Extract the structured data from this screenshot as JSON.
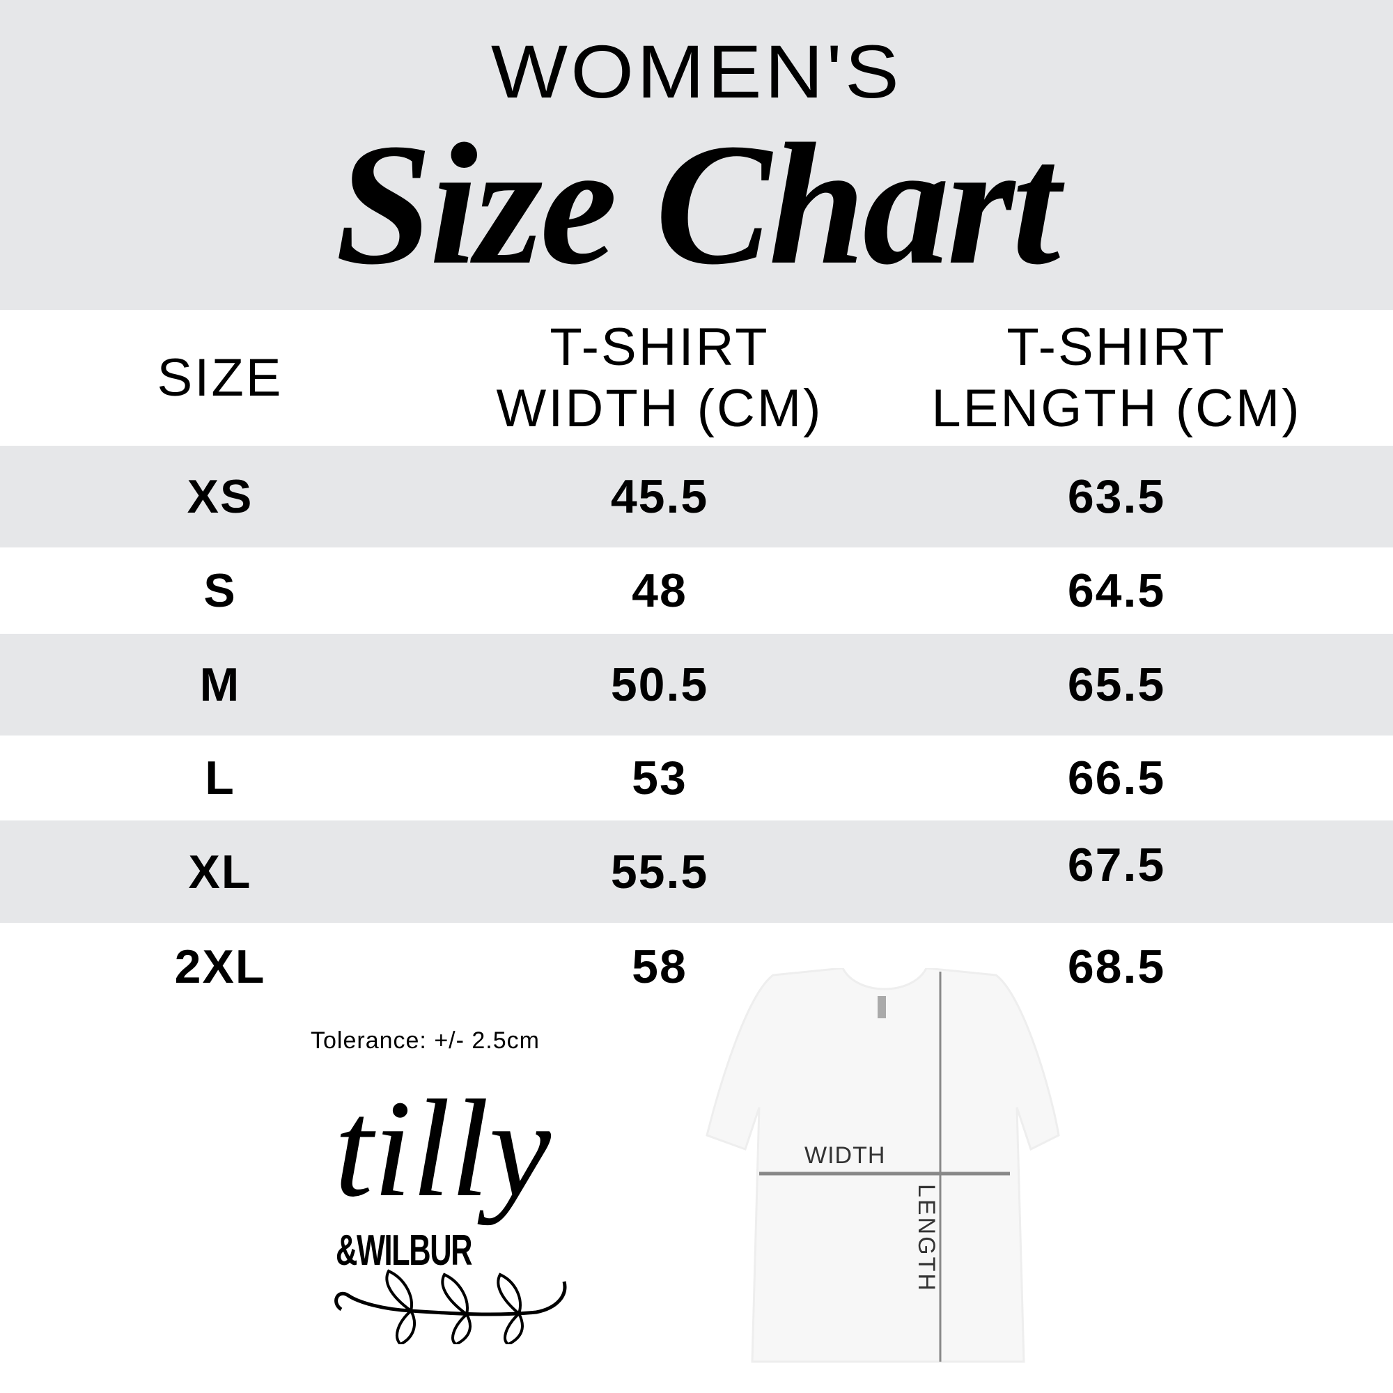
{
  "header": {
    "subtitle": "WOMEN'S",
    "title": "Size Chart"
  },
  "table": {
    "columns": [
      "SIZE",
      "T-SHIRT WIDTH (CM)",
      "T-SHIRT LENGTH (CM)"
    ],
    "col2_line1": "T-SHIRT",
    "col2_line2": "WIDTH (CM)",
    "col3_line1": "T-SHIRT",
    "col3_line2": "LENGTH (CM)",
    "rows": [
      {
        "size": "XS",
        "width": "45.5",
        "length": "63.5"
      },
      {
        "size": "S",
        "width": "48",
        "length": "64.5"
      },
      {
        "size": "M",
        "width": "50.5",
        "length": "65.5"
      },
      {
        "size": "L",
        "width": "53",
        "length": "66.5"
      },
      {
        "size": "XL",
        "width": "55.5",
        "length": "67.5"
      },
      {
        "size": "2XL",
        "width": "58",
        "length": "68.5"
      }
    ]
  },
  "tolerance": "Tolerance: +/- 2.5cm",
  "logo": {
    "line1": "tilly",
    "line2": "&WILBUR"
  },
  "diagram": {
    "width_label": "WIDTH",
    "length_label": "LENGTH"
  },
  "colors": {
    "band": "#e6e7e9",
    "text": "#000000",
    "guide": "#888888"
  }
}
